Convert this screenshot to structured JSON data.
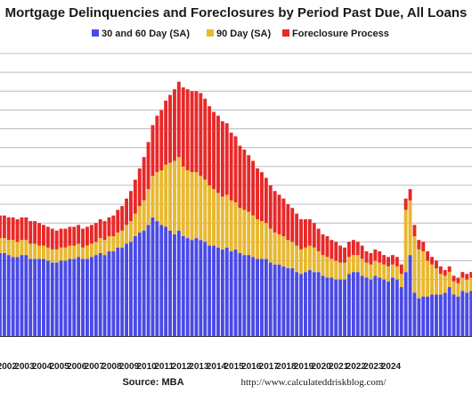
{
  "chart_data": {
    "type": "bar",
    "stacked": true,
    "title": "Mortgage Delinquencies and Foreclosures by Period Past Due, All Loans",
    "source": "Source: MBA",
    "url": "http://www.calculateddriskblog.com/",
    "xlabel": "",
    "ylabel": "",
    "ylim": [
      0,
      15
    ],
    "grid": true,
    "legend_position": "top",
    "x_tick_labels": [
      "2002",
      "2003",
      "2004",
      "2005",
      "2006",
      "2007",
      "2008",
      "2009",
      "2010",
      "2011",
      "2012",
      "2013",
      "2014",
      "2015",
      "2016",
      "2017",
      "2018",
      "2019",
      "2020",
      "2021",
      "2022",
      "2023",
      "2024"
    ],
    "series": [
      {
        "name": "30 and 60 Day (SA)",
        "color": "#4a4ae6",
        "values": [
          4.4,
          4.4,
          4.3,
          4.2,
          4.2,
          4.3,
          4.3,
          4.1,
          4.1,
          4.1,
          4.1,
          4.0,
          3.9,
          3.9,
          4.0,
          4.0,
          4.1,
          4.1,
          4.2,
          4.1,
          4.1,
          4.2,
          4.3,
          4.4,
          4.3,
          4.5,
          4.5,
          4.7,
          4.7,
          4.9,
          5.0,
          5.3,
          5.5,
          5.6,
          5.9,
          6.3,
          6.1,
          5.9,
          5.8,
          5.6,
          5.4,
          5.6,
          5.3,
          5.2,
          5.1,
          5.2,
          5.1,
          5.0,
          4.8,
          4.8,
          4.7,
          4.6,
          4.7,
          4.5,
          4.6,
          4.4,
          4.3,
          4.3,
          4.2,
          4.1,
          4.1,
          4.1,
          3.9,
          3.8,
          3.8,
          3.7,
          3.6,
          3.6,
          3.4,
          3.3,
          3.4,
          3.5,
          3.4,
          3.4,
          3.2,
          3.1,
          3.1,
          3.0,
          3.0,
          3.0,
          3.3,
          3.4,
          3.4,
          3.2,
          3.1,
          3.0,
          3.2,
          3.1,
          3.0,
          2.9,
          3.1,
          3.0,
          2.6,
          3.4,
          4.3,
          2.3,
          2.0,
          2.1,
          2.1,
          2.2,
          2.2,
          2.2,
          2.3,
          2.6,
          2.2,
          2.1,
          2.4,
          2.3,
          2.4,
          2.5
        ]
      },
      {
        "name": "90 Day (SA)",
        "color": "#e8b830",
        "values": [
          0.8,
          0.8,
          0.8,
          0.9,
          0.8,
          0.8,
          0.8,
          0.8,
          0.8,
          0.7,
          0.7,
          0.7,
          0.7,
          0.7,
          0.7,
          0.7,
          0.7,
          0.7,
          0.7,
          0.6,
          0.7,
          0.7,
          0.7,
          0.8,
          0.8,
          0.8,
          0.8,
          0.8,
          0.9,
          1.0,
          1.1,
          1.2,
          1.4,
          1.6,
          1.9,
          2.2,
          2.6,
          2.9,
          3.3,
          3.6,
          3.9,
          3.9,
          3.7,
          3.6,
          3.6,
          3.5,
          3.4,
          3.3,
          3.2,
          3.0,
          2.9,
          2.8,
          2.8,
          2.7,
          2.5,
          2.4,
          2.4,
          2.3,
          2.2,
          2.1,
          2.0,
          1.9,
          1.8,
          1.7,
          1.6,
          1.6,
          1.5,
          1.4,
          1.4,
          1.3,
          1.3,
          1.3,
          1.3,
          1.1,
          1.1,
          1.1,
          1.0,
          1.0,
          0.9,
          0.9,
          0.9,
          0.9,
          0.9,
          0.9,
          0.8,
          0.8,
          0.8,
          0.8,
          0.8,
          0.8,
          0.7,
          0.7,
          0.7,
          3.3,
          2.9,
          3.0,
          2.6,
          2.4,
          1.9,
          1.6,
          1.4,
          1.1,
          0.9,
          0.8,
          0.7,
          0.7,
          0.7,
          0.7,
          0.7,
          0.7
        ]
      },
      {
        "name": "Foreclosure Process",
        "color": "#e82828",
        "values": [
          1.2,
          1.2,
          1.2,
          1.2,
          1.2,
          1.2,
          1.2,
          1.2,
          1.2,
          1.2,
          1.1,
          1.1,
          1.1,
          1.0,
          1.0,
          1.0,
          1.0,
          1.0,
          1.0,
          1.0,
          1.0,
          1.0,
          1.0,
          1.0,
          1.0,
          1.0,
          1.1,
          1.2,
          1.3,
          1.4,
          1.6,
          1.8,
          2.0,
          2.3,
          2.5,
          2.7,
          3.0,
          3.2,
          3.4,
          3.6,
          3.8,
          4.0,
          4.2,
          4.3,
          4.3,
          4.3,
          4.4,
          4.3,
          4.2,
          4.1,
          4.1,
          4.0,
          3.8,
          3.6,
          3.5,
          3.3,
          3.2,
          3.0,
          2.9,
          2.7,
          2.6,
          2.4,
          2.3,
          2.2,
          2.1,
          2.0,
          1.9,
          1.8,
          1.7,
          1.6,
          1.5,
          1.4,
          1.3,
          1.2,
          1.1,
          1.1,
          1.0,
          1.0,
          0.9,
          0.8,
          0.8,
          0.8,
          0.7,
          0.7,
          0.6,
          0.6,
          0.6,
          0.6,
          0.5,
          0.5,
          0.5,
          0.5,
          0.5,
          0.6,
          0.6,
          0.6,
          0.5,
          0.5,
          0.5,
          0.4,
          0.4,
          0.4,
          0.3,
          0.3,
          0.3,
          0.3,
          0.3,
          0.3,
          0.3,
          0.3
        ]
      }
    ]
  }
}
